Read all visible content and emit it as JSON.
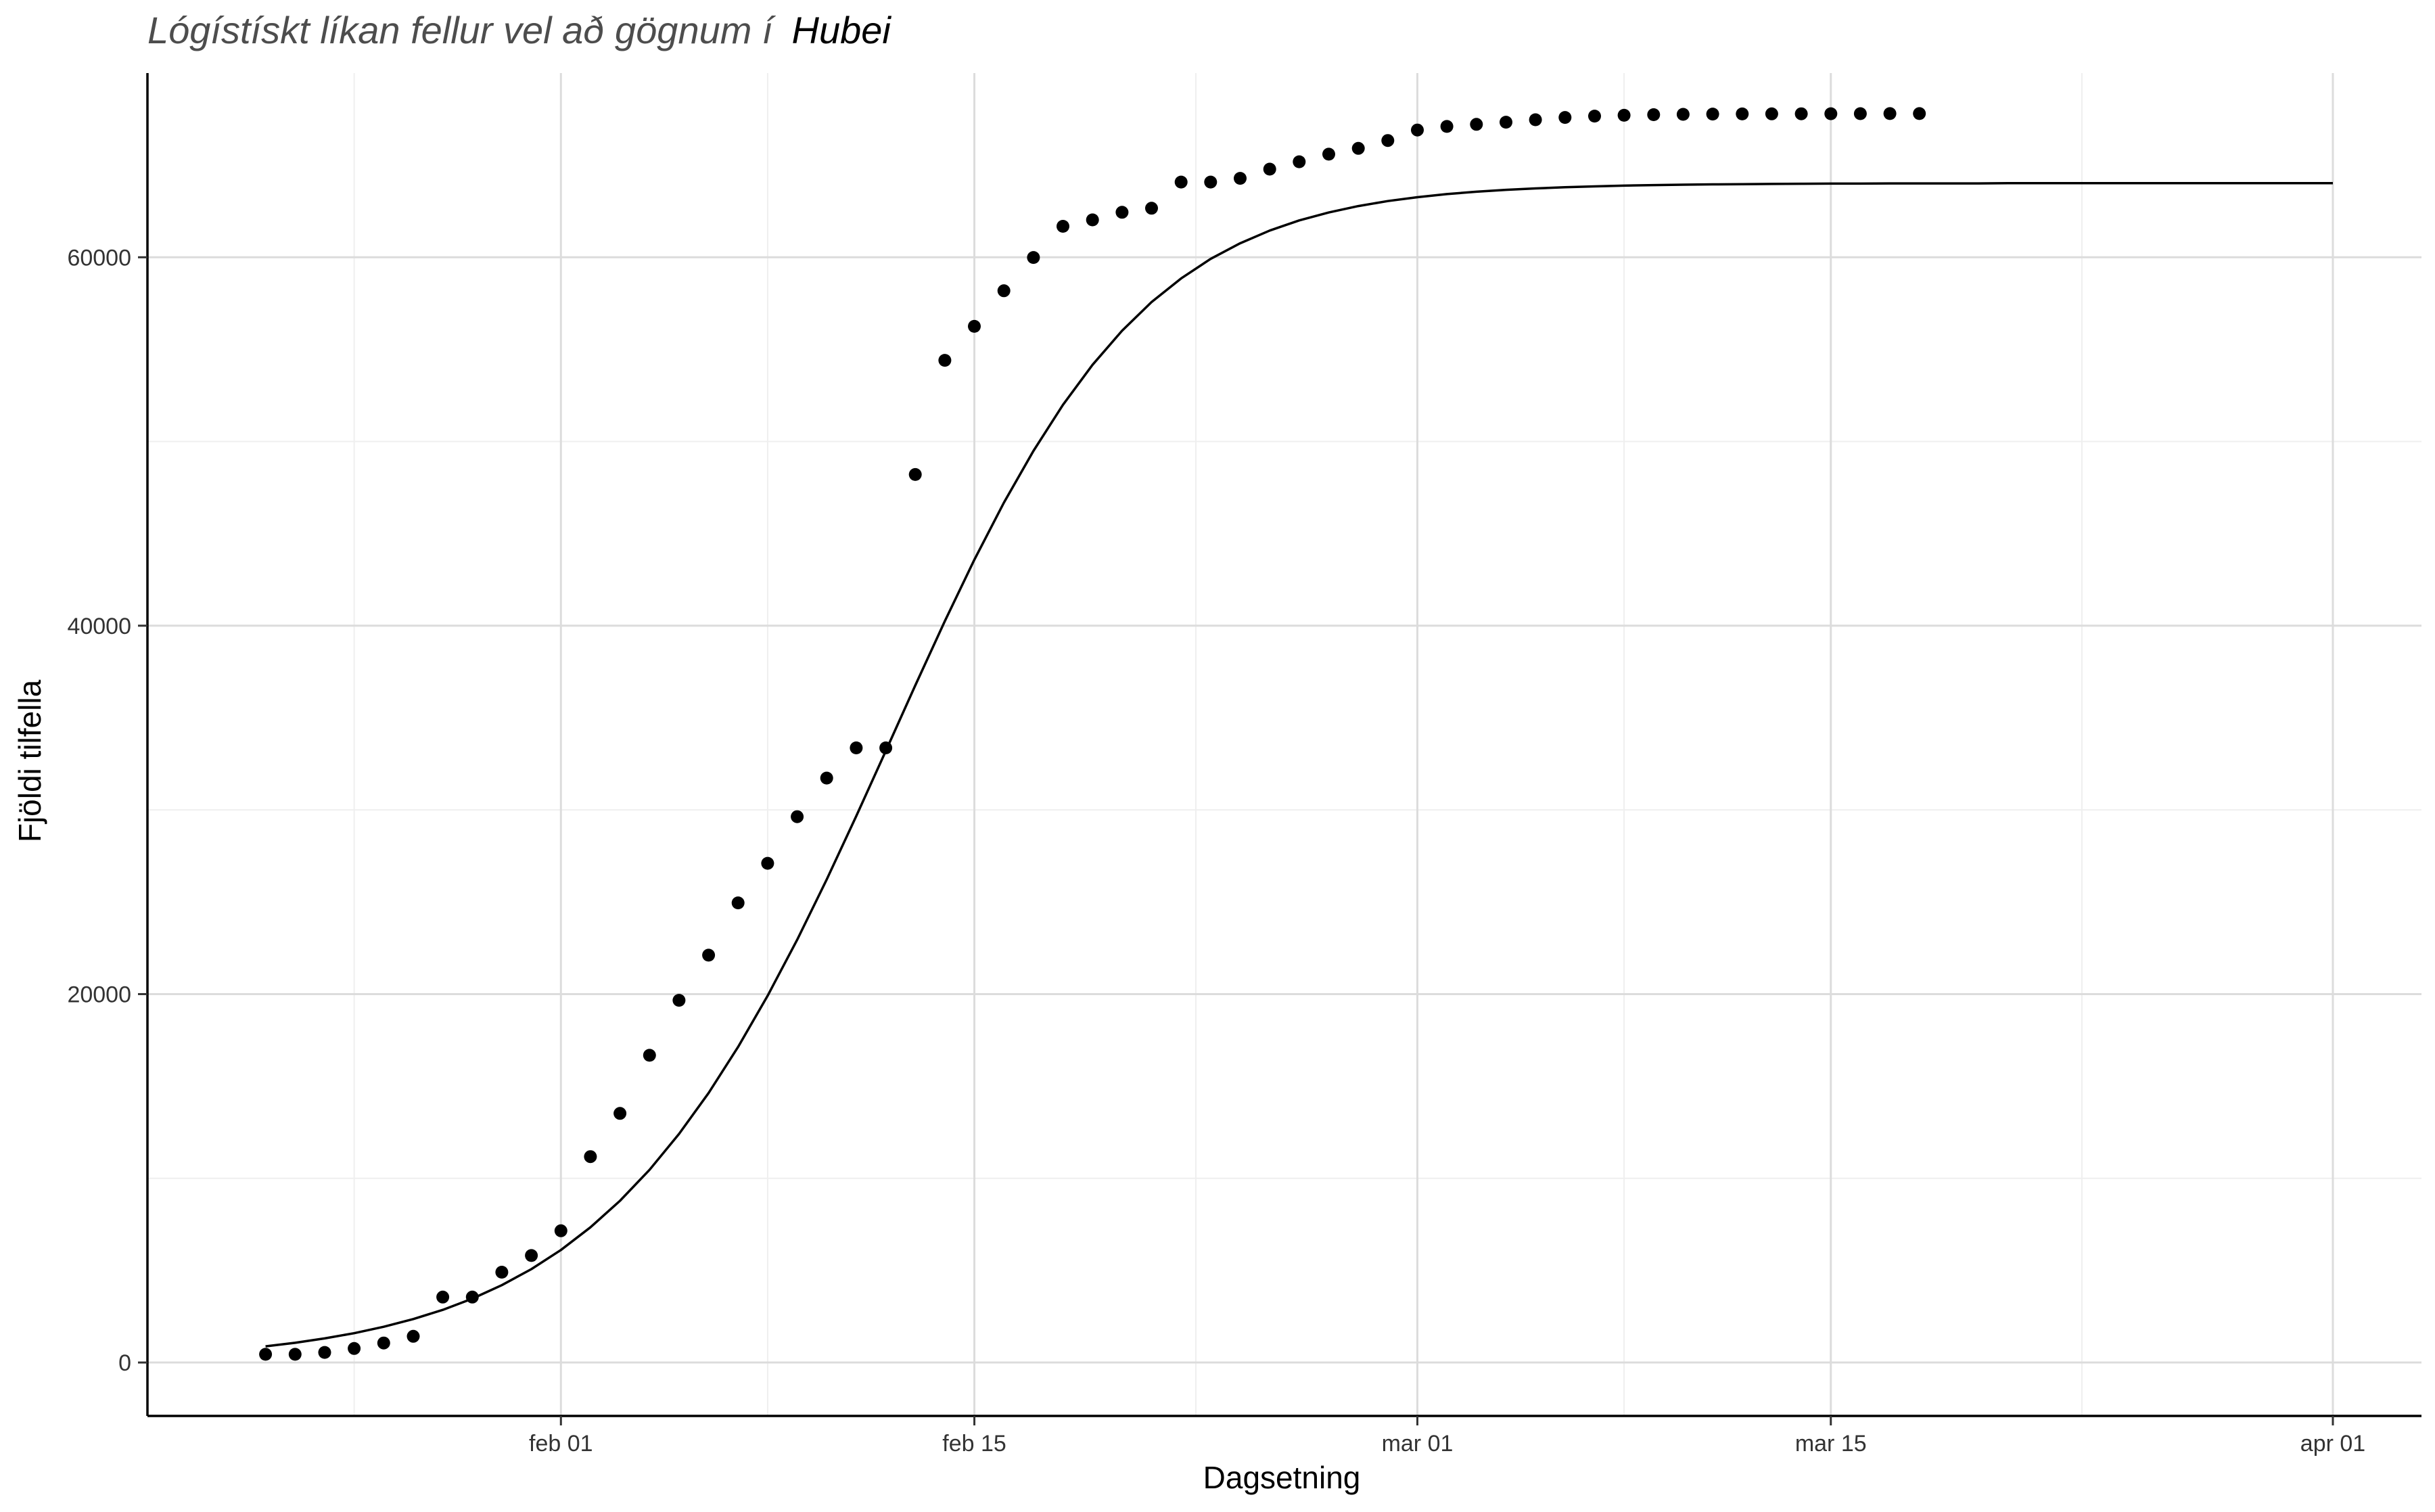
{
  "chart_data": {
    "type": "scatter",
    "title": "Lógístískt líkan fellur vel að gögnum í",
    "title_region": "Hubei",
    "xlabel": "Dagsetning",
    "ylabel": "Fjöldi tilfella",
    "xlim": [
      "2020-01-18",
      "2020-04-04"
    ],
    "ylim": [
      -2900,
      70000
    ],
    "grid": true,
    "x_ticks": [
      {
        "date": "2020-02-01",
        "label": "feb 01"
      },
      {
        "date": "2020-02-15",
        "label": "feb 15"
      },
      {
        "date": "2020-03-01",
        "label": "mar 01"
      },
      {
        "date": "2020-03-15",
        "label": "mar 15"
      },
      {
        "date": "2020-04-01",
        "label": "apr 01"
      }
    ],
    "y_ticks": [
      {
        "value": 0,
        "label": "0"
      },
      {
        "value": 20000,
        "label": "20000"
      },
      {
        "value": 40000,
        "label": "40000"
      },
      {
        "value": 60000,
        "label": "60000"
      }
    ],
    "observed": {
      "start_date": "2020-01-22",
      "values": [
        444,
        444,
        549,
        761,
        1058,
        1423,
        3554,
        3554,
        4903,
        5806,
        7153,
        11177,
        13522,
        16678,
        19665,
        22112,
        24953,
        27100,
        29631,
        31728,
        33366,
        33366,
        48206,
        54406,
        56249,
        58182,
        59989,
        61682,
        62031,
        62442,
        62662,
        64084,
        64084,
        64287,
        64786,
        65187,
        65596,
        65914,
        66337,
        66907,
        67103,
        67217,
        67332,
        67466,
        67592,
        67666,
        67707,
        67743,
        67760,
        67773,
        67781,
        67786,
        67790,
        67794,
        67798,
        67799,
        67800
      ]
    },
    "fit": {
      "start_date": "2020-01-22",
      "end_date": "2020-04-01",
      "values": [
        880,
        1070,
        1310,
        1590,
        1940,
        2360,
        2860,
        3470,
        4200,
        5070,
        6110,
        7340,
        8780,
        10460,
        12410,
        14630,
        17130,
        19910,
        22950,
        26220,
        29660,
        33200,
        36760,
        40250,
        43580,
        46680,
        49490,
        51990,
        54160,
        56010,
        57570,
        58850,
        59910,
        60760,
        61450,
        62000,
        62430,
        62780,
        63050,
        63260,
        63430,
        63560,
        63660,
        63740,
        63800,
        63850,
        63890,
        63920,
        63940,
        63960,
        63970,
        63980,
        63990,
        64000,
        64000,
        64010,
        64010,
        64010,
        64010,
        64020,
        64020,
        64020,
        64020,
        64020,
        64020,
        64020,
        64020,
        64020,
        64020,
        64020,
        64020
      ]
    }
  }
}
